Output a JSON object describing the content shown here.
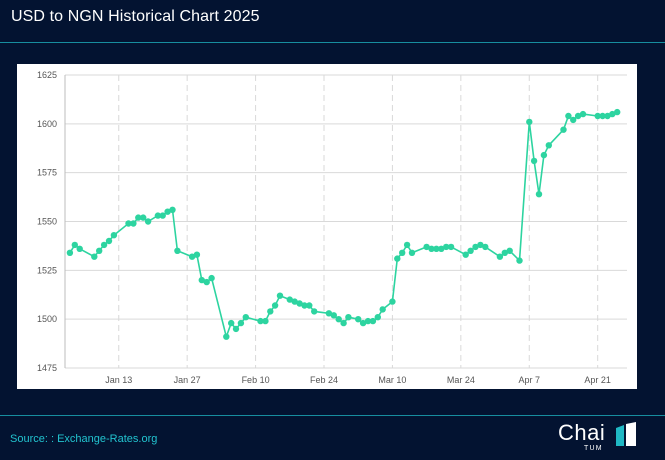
{
  "header": {
    "title": "USD to NGN Historical Chart 2025"
  },
  "footer": {
    "source": "Source: : Exchange-Rates.org"
  },
  "brand": {
    "name": "Chai",
    "sub": "TUM",
    "color": "#1fb8c4"
  },
  "colors": {
    "background": "#031331",
    "line": "#2dd4a0",
    "grid": "#d9d9d9"
  },
  "chart_data": {
    "type": "line",
    "title": "USD to NGN Historical Chart 2025",
    "xlabel": "",
    "ylabel": "",
    "ylim": [
      1475,
      1625
    ],
    "xlim": [
      "2025-01-02",
      "2025-04-27"
    ],
    "y_ticks": [
      1475,
      1500,
      1525,
      1550,
      1575,
      1600,
      1625
    ],
    "x_ticks": [
      {
        "date": "2025-01-13",
        "label": "Jan 13"
      },
      {
        "date": "2025-01-27",
        "label": "Jan 27"
      },
      {
        "date": "2025-02-10",
        "label": "Feb 10"
      },
      {
        "date": "2025-02-24",
        "label": "Feb 24"
      },
      {
        "date": "2025-03-10",
        "label": "Mar 10"
      },
      {
        "date": "2025-03-24",
        "label": "Mar 24"
      },
      {
        "date": "2025-04-07",
        "label": "Apr 7"
      },
      {
        "date": "2025-04-21",
        "label": "Apr 21"
      }
    ],
    "grid": true,
    "series": [
      {
        "points": [
          [
            "2025-01-03",
            1534
          ],
          [
            "2025-01-04",
            1538
          ],
          [
            "2025-01-05",
            1536
          ],
          [
            "2025-01-08",
            1532
          ],
          [
            "2025-01-09",
            1535
          ],
          [
            "2025-01-10",
            1538
          ],
          [
            "2025-01-11",
            1540
          ],
          [
            "2025-01-12",
            1543
          ],
          [
            "2025-01-15",
            1549
          ],
          [
            "2025-01-16",
            1549
          ],
          [
            "2025-01-17",
            1552
          ],
          [
            "2025-01-18",
            1552
          ],
          [
            "2025-01-19",
            1550
          ],
          [
            "2025-01-21",
            1553
          ],
          [
            "2025-01-22",
            1553
          ],
          [
            "2025-01-23",
            1555
          ],
          [
            "2025-01-24",
            1556
          ],
          [
            "2025-01-25",
            1535
          ],
          [
            "2025-01-28",
            1532
          ],
          [
            "2025-01-29",
            1533
          ],
          [
            "2025-01-30",
            1520
          ],
          [
            "2025-01-31",
            1519
          ],
          [
            "2025-02-01",
            1521
          ],
          [
            "2025-02-04",
            1491
          ],
          [
            "2025-02-05",
            1498
          ],
          [
            "2025-02-06",
            1495
          ],
          [
            "2025-02-07",
            1498
          ],
          [
            "2025-02-08",
            1501
          ],
          [
            "2025-02-11",
            1499
          ],
          [
            "2025-02-12",
            1499
          ],
          [
            "2025-02-13",
            1504
          ],
          [
            "2025-02-14",
            1507
          ],
          [
            "2025-02-15",
            1512
          ],
          [
            "2025-02-17",
            1510
          ],
          [
            "2025-02-18",
            1509
          ],
          [
            "2025-02-19",
            1508
          ],
          [
            "2025-02-20",
            1507
          ],
          [
            "2025-02-21",
            1507
          ],
          [
            "2025-02-22",
            1504
          ],
          [
            "2025-02-25",
            1503
          ],
          [
            "2025-02-26",
            1502
          ],
          [
            "2025-02-27",
            1500
          ],
          [
            "2025-02-28",
            1498
          ],
          [
            "2025-03-01",
            1501
          ],
          [
            "2025-03-03",
            1500
          ],
          [
            "2025-03-04",
            1498
          ],
          [
            "2025-03-05",
            1499
          ],
          [
            "2025-03-06",
            1499
          ],
          [
            "2025-03-07",
            1501
          ],
          [
            "2025-03-08",
            1505
          ],
          [
            "2025-03-10",
            1509
          ],
          [
            "2025-03-11",
            1531
          ],
          [
            "2025-03-12",
            1534
          ],
          [
            "2025-03-13",
            1538
          ],
          [
            "2025-03-14",
            1534
          ],
          [
            "2025-03-17",
            1537
          ],
          [
            "2025-03-18",
            1536
          ],
          [
            "2025-03-19",
            1536
          ],
          [
            "2025-03-20",
            1536
          ],
          [
            "2025-03-21",
            1537
          ],
          [
            "2025-03-22",
            1537
          ],
          [
            "2025-03-25",
            1533
          ],
          [
            "2025-03-26",
            1535
          ],
          [
            "2025-03-27",
            1537
          ],
          [
            "2025-03-28",
            1538
          ],
          [
            "2025-03-29",
            1537
          ],
          [
            "2025-04-01",
            1532
          ],
          [
            "2025-04-02",
            1534
          ],
          [
            "2025-04-03",
            1535
          ],
          [
            "2025-04-05",
            1530
          ],
          [
            "2025-04-07",
            1601
          ],
          [
            "2025-04-08",
            1581
          ],
          [
            "2025-04-09",
            1564
          ],
          [
            "2025-04-10",
            1584
          ],
          [
            "2025-04-11",
            1589
          ],
          [
            "2025-04-14",
            1597
          ],
          [
            "2025-04-15",
            1604
          ],
          [
            "2025-04-16",
            1602
          ],
          [
            "2025-04-17",
            1604
          ],
          [
            "2025-04-18",
            1605
          ],
          [
            "2025-04-21",
            1604
          ],
          [
            "2025-04-22",
            1604
          ],
          [
            "2025-04-23",
            1604
          ],
          [
            "2025-04-24",
            1605
          ],
          [
            "2025-04-25",
            1606
          ]
        ]
      }
    ]
  }
}
